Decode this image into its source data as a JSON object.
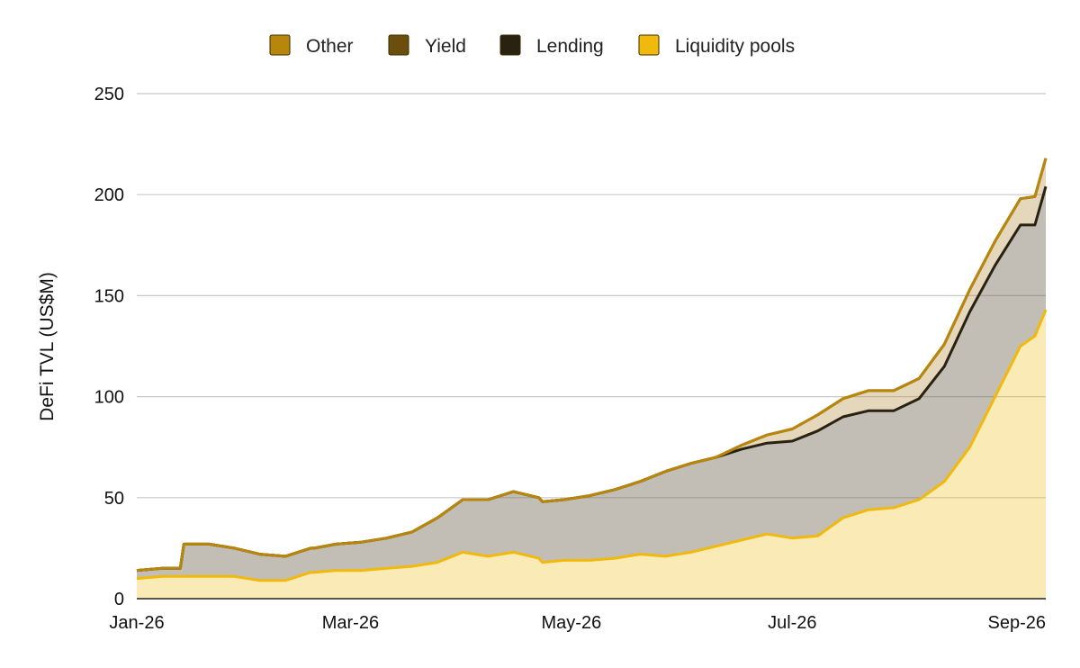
{
  "chart_data": {
    "type": "area",
    "stacked": true,
    "title": "",
    "xlabel": "",
    "ylabel": "DeFi TVL (US$M)",
    "ylim": [
      0,
      250
    ],
    "yticks": [
      0,
      50,
      100,
      150,
      200,
      250
    ],
    "xticks": [
      "Jan-26",
      "Mar-26",
      "May-26",
      "Jul-26",
      "Sep-26"
    ],
    "xtick_dates": [
      "2026-01-01",
      "2026-03-01",
      "2026-05-01",
      "2026-07-01",
      "2026-09-01"
    ],
    "grid": true,
    "legend": "top",
    "legend_items": [
      {
        "name": "Other",
        "color": "#B8860B"
      },
      {
        "name": "Yield",
        "color": "#6B4E0E"
      },
      {
        "name": "Lending",
        "color": "#2A2210"
      },
      {
        "name": "Liquidity pools",
        "color": "#F0B90B"
      }
    ],
    "dates": [
      "2026-01-01",
      "2026-01-08",
      "2026-01-13",
      "2026-01-14",
      "2026-01-21",
      "2026-01-28",
      "2026-02-04",
      "2026-02-11",
      "2026-02-18",
      "2026-02-19",
      "2026-02-25",
      "2026-03-04",
      "2026-03-11",
      "2026-03-18",
      "2026-03-25",
      "2026-04-01",
      "2026-04-08",
      "2026-04-15",
      "2026-04-22",
      "2026-04-23",
      "2026-04-29",
      "2026-05-06",
      "2026-05-13",
      "2026-05-20",
      "2026-05-27",
      "2026-06-03",
      "2026-06-10",
      "2026-06-17",
      "2026-06-24",
      "2026-07-01",
      "2026-07-08",
      "2026-07-15",
      "2026-07-22",
      "2026-07-29",
      "2026-08-05",
      "2026-08-12",
      "2026-08-19",
      "2026-08-26",
      "2026-09-02",
      "2026-09-06",
      "2026-09-09"
    ],
    "series": [
      {
        "name": "Liquidity pools",
        "color": "#F0B90B",
        "values": [
          10,
          11,
          11,
          11,
          11,
          11,
          9,
          9,
          13,
          13,
          14,
          14,
          15,
          16,
          18,
          23,
          21,
          23,
          20,
          18,
          19,
          19,
          20,
          22,
          21,
          23,
          26,
          29,
          32,
          30,
          31,
          40,
          44,
          45,
          49,
          58,
          75,
          100,
          125,
          130,
          143
        ]
      },
      {
        "name": "Lending",
        "color": "#2A2210",
        "values": [
          4,
          4,
          4,
          16,
          16,
          14,
          13,
          12,
          12,
          12,
          13,
          14,
          15,
          17,
          22,
          26,
          28,
          30,
          30,
          30,
          30,
          32,
          34,
          36,
          42,
          44,
          44,
          45,
          45,
          48,
          52,
          50,
          49,
          48,
          50,
          57,
          67,
          65,
          60,
          55,
          61
        ]
      },
      {
        "name": "Yield",
        "color": "#6B4E0E",
        "values": [
          0,
          0,
          0,
          0,
          0,
          0,
          0,
          0,
          0,
          0,
          0,
          0,
          0,
          0,
          0,
          0,
          0,
          0,
          0,
          0,
          0,
          0,
          0,
          0,
          0,
          0,
          0,
          2,
          4,
          6,
          8,
          9,
          10,
          10,
          10,
          11,
          11,
          12,
          13,
          14,
          14
        ]
      },
      {
        "name": "Other",
        "color": "#B8860B",
        "values": [
          0,
          0,
          0,
          0,
          0,
          0,
          0,
          0,
          0,
          0,
          0,
          0,
          0,
          0,
          0,
          0,
          0,
          0,
          0,
          0,
          0,
          0,
          0,
          0,
          0,
          0,
          0,
          0,
          0,
          0,
          0,
          0,
          0,
          0,
          0,
          0,
          0,
          0,
          0,
          0,
          0
        ]
      }
    ]
  }
}
